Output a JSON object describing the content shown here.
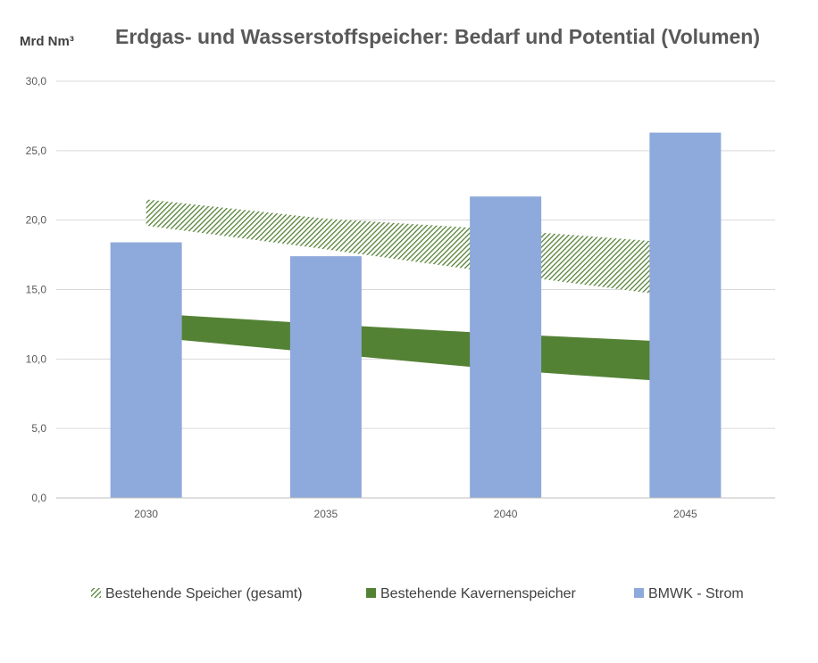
{
  "chart_data": {
    "type": "bar",
    "title": "Erdgas- und Wasserstoffspeicher: Bedarf und Potential (Volumen)",
    "ylabel": "Mrd Nm³",
    "xlabel": "",
    "ylim": [
      0,
      30
    ],
    "yticks": [
      "0,0",
      "5,0",
      "10,0",
      "15,0",
      "20,0",
      "25,0",
      "30,0"
    ],
    "ytick_values": [
      0,
      5,
      10,
      15,
      20,
      25,
      30
    ],
    "categories": [
      "2030",
      "2035",
      "2040",
      "2045"
    ],
    "grid": true,
    "legend_position": "bottom",
    "series": [
      {
        "name": "Bestehende Speicher (gesamt)",
        "kind": "range-band",
        "pattern": "hatched",
        "color": "#548235",
        "lower": [
          19.6,
          17.9,
          16.1,
          14.4
        ],
        "upper": [
          21.5,
          20.1,
          19.3,
          18.3
        ]
      },
      {
        "name": "Bestehende Kavernenspeicher",
        "kind": "range-band",
        "color": "#548235",
        "lower": [
          11.6,
          10.4,
          9.2,
          8.3
        ],
        "upper": [
          13.3,
          12.5,
          11.8,
          11.2
        ]
      },
      {
        "name": "BMWK - Strom",
        "kind": "bar",
        "color": "#8EA9DB",
        "values": [
          18.4,
          17.4,
          21.7,
          26.3
        ]
      }
    ]
  }
}
